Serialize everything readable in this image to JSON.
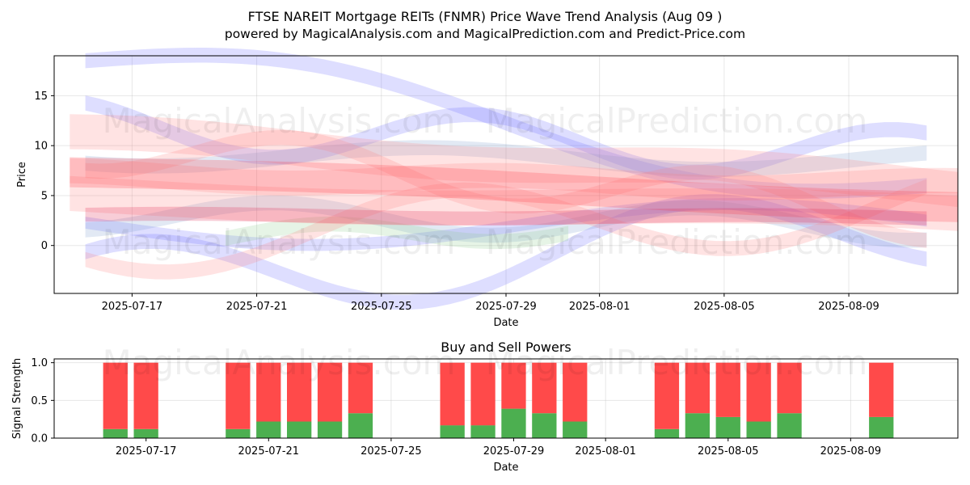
{
  "header": {
    "title": "FTSE NAREIT Mortgage REITs (FNMR) Price Wave Trend Analysis (Aug 09 )",
    "subtitle": "powered by MagicalAnalysis.com and MagicalPrediction.com and Predict-Price.com"
  },
  "watermarks": [
    "MagicalAnalysis.com",
    "MagicalPrediction.com"
  ],
  "chart_data": [
    {
      "type": "area",
      "title": "",
      "xlabel": "Date",
      "ylabel": "Price",
      "x_ticks": [
        "2025-07-17",
        "2025-07-21",
        "2025-07-25",
        "2025-07-29",
        "2025-08-01",
        "2025-08-05",
        "2025-08-09"
      ],
      "y_ticks": [
        0,
        5,
        10,
        15
      ],
      "xlim": [
        "2025-07-14T12:00",
        "2025-08-12T12:00"
      ],
      "ylim": [
        -4.8,
        19
      ],
      "grid": true,
      "bands": [
        {
          "color": "#6a6aff",
          "start": "2025-07-15T12:00",
          "end": "2025-08-11T12:00",
          "y_start": 18.5,
          "y_end": 6.0,
          "width": 1.5,
          "wave": 3.0
        },
        {
          "color": "#6a6aff",
          "start": "2025-07-15T12:00",
          "end": "2025-08-11T12:00",
          "y_start": -4.0,
          "y_end": 2.0,
          "width": 1.5,
          "wave": 4.0
        },
        {
          "color": "#6a6aff",
          "start": "2025-07-15T12:00",
          "end": "2025-08-11T12:00",
          "y_start": 12.0,
          "y_end": 9.0,
          "width": 1.5,
          "wave": 2.5
        },
        {
          "color": "#6a6aff",
          "start": "2025-07-15T12:00",
          "end": "2025-08-11T12:00",
          "y_start": 2.0,
          "y_end": 2.2,
          "width": 1.2,
          "wave": 2.0
        },
        {
          "color": "#7a9acc",
          "start": "2025-07-15T12:00",
          "end": "2025-08-11T12:00",
          "y_start": 9.0,
          "y_end": 8.5,
          "width": 1.5,
          "wave": 1.0
        },
        {
          "color": "#7a9acc",
          "start": "2025-07-15T12:00",
          "end": "2025-08-11T12:00",
          "y_start": 3.0,
          "y_end": 2.0,
          "width": 1.5,
          "wave": 1.5
        },
        {
          "color": "#8ccc8c",
          "start": "2025-07-20T00:00",
          "end": "2025-07-31T00:00",
          "y_start": 1.0,
          "y_end": 1.5,
          "width": 1.5,
          "wave": 1.0
        },
        {
          "color": "#ff8080",
          "start": "2025-07-15T00:00",
          "end": "2025-08-12T12:00",
          "y_start": 11.0,
          "y_end": 6.0,
          "width": 3.5,
          "wave": 0.6
        },
        {
          "color": "#ff8080",
          "start": "2025-07-15T00:00",
          "end": "2025-08-12T12:00",
          "y_start": 7.0,
          "y_end": 6.0,
          "width": 2.5,
          "wave": 0.5
        },
        {
          "color": "#ff8080",
          "start": "2025-07-15T00:00",
          "end": "2025-08-12T12:00",
          "y_start": 5.0,
          "y_end": 3.0,
          "width": 3.5,
          "wave": 0.5
        },
        {
          "color": "#ff8080",
          "start": "2025-07-15T12:00",
          "end": "2025-08-11T12:00",
          "y_start": 0.5,
          "y_end": 4.0,
          "width": 1.5,
          "wave": 3.5
        },
        {
          "color": "#ff8080",
          "start": "2025-07-15T12:00",
          "end": "2025-08-11T12:00",
          "y_start": 10.0,
          "y_end": 3.0,
          "width": 1.5,
          "wave": 2.5
        },
        {
          "color": "#ff3040",
          "start": "2025-07-15T00:00",
          "end": "2025-08-12T12:00",
          "y_start": 7.5,
          "y_end": 4.0,
          "width": 3.0,
          "wave": 0.3
        },
        {
          "color": "#dd1a4a",
          "start": "2025-07-15T12:00",
          "end": "2025-08-11T12:00",
          "y_start": 3.0,
          "y_end": 2.8,
          "width": 1.4,
          "wave": 0.2
        }
      ]
    },
    {
      "type": "bar",
      "title": "Buy and Sell Powers",
      "xlabel": "Date",
      "ylabel": "Signal Strength",
      "x_ticks": [
        "2025-07-17",
        "2025-07-21",
        "2025-07-25",
        "2025-07-29",
        "2025-08-01",
        "2025-08-05",
        "2025-08-09"
      ],
      "y_ticks": [
        0.0,
        0.5,
        1.0
      ],
      "ylim": [
        0,
        1.05
      ],
      "grid": true,
      "categories": [
        "2025-07-16",
        "2025-07-17",
        "2025-07-20",
        "2025-07-21",
        "2025-07-22",
        "2025-07-23",
        "2025-07-24",
        "2025-07-27",
        "2025-07-28",
        "2025-07-29",
        "2025-07-30",
        "2025-07-31",
        "2025-08-03",
        "2025-08-04",
        "2025-08-05",
        "2025-08-06",
        "2025-08-07",
        "2025-08-10"
      ],
      "series": [
        {
          "name": "Buy",
          "color": "#4caf50",
          "values": [
            0.12,
            0.12,
            0.12,
            0.22,
            0.22,
            0.22,
            0.33,
            0.17,
            0.17,
            0.39,
            0.33,
            0.22,
            0.12,
            0.33,
            0.28,
            0.22,
            0.33,
            0.28
          ]
        },
        {
          "name": "Sell",
          "color": "#ff4a4a",
          "values": [
            0.88,
            0.88,
            0.88,
            0.78,
            0.78,
            0.78,
            0.67,
            0.83,
            0.83,
            0.61,
            0.67,
            0.78,
            0.88,
            0.67,
            0.72,
            0.78,
            0.67,
            0.72
          ]
        }
      ]
    }
  ]
}
